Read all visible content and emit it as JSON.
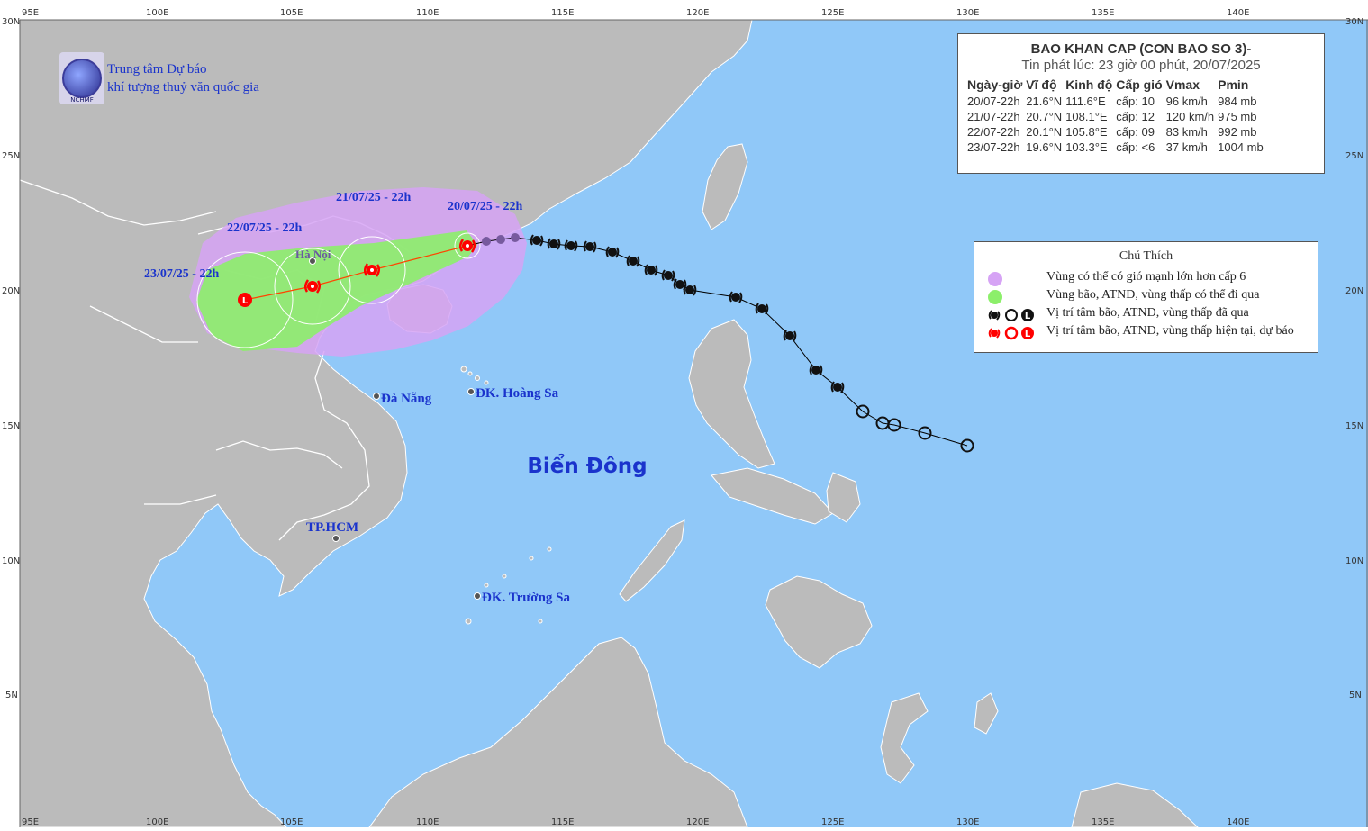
{
  "map": {
    "lon_ticks": [
      "95E",
      "100E",
      "105E",
      "110E",
      "115E",
      "120E",
      "125E",
      "130E",
      "135E",
      "140E"
    ],
    "lat_ticks": [
      "30N",
      "25N",
      "20N",
      "15N",
      "10N",
      "5N"
    ],
    "sea_label": "Biển Đông",
    "places": {
      "hanoi": "Hà Nội",
      "danang": "Đà Nẵng",
      "hoangsa": "ĐK. Hoàng Sa",
      "hcm": "TP.HCM",
      "truongsa": "ĐK. Trường Sa"
    },
    "forecast_dates": {
      "d1": "20/07/25 - 22h",
      "d2": "21/07/25 - 22h",
      "d3": "22/07/25 - 22h",
      "d4": "23/07/25 - 22h"
    },
    "colors": {
      "sea": "#90c8f8",
      "land": "#bbbbbb",
      "strong_wind_zone": "#d6a3f5",
      "storm_zone": "#8cef6a",
      "track_past": "#000000",
      "track_current": "#ff0000",
      "track_near_past": "#775a9e"
    },
    "past_track_icons": "storm-icon",
    "early_track_icons": "circle-icon"
  },
  "org": {
    "line1": "Trung tâm Dự báo",
    "line2": "khí tượng thuỷ văn quốc gia",
    "logo_text": "NCHMF"
  },
  "bulletin": {
    "title": "BAO KHAN CAP (CON BAO SO 3)-",
    "issued": "Tin phát lúc: 23 giờ 00 phút, 20/07/2025",
    "headers": [
      "Ngày-giờ",
      "Vĩ độ",
      "Kinh độ",
      "Cấp gió",
      "Vmax",
      "Pmin"
    ],
    "rows": [
      [
        "20/07-22h",
        "21.6°N",
        "111.6°E",
        "cấp: 10",
        "96 km/h",
        "984 mb"
      ],
      [
        "21/07-22h",
        "20.7°N",
        "108.1°E",
        "cấp: 12",
        "120 km/h",
        "975 mb"
      ],
      [
        "22/07-22h",
        "20.1°N",
        "105.8°E",
        "cấp: 09",
        "83 km/h",
        "992 mb"
      ],
      [
        "23/07-22h",
        "19.6°N",
        "103.3°E",
        "cấp: <6",
        "37 km/h",
        "1004 mb"
      ]
    ]
  },
  "legend": {
    "title": "Chú Thích",
    "items": [
      "Vùng có thể có gió mạnh lớn hơn cấp 6",
      "Vùng bão, ATNĐ, vùng thấp có thể đi qua",
      "Vị trí tâm bão, ATNĐ, vùng thấp đã qua",
      "Vị trí tâm bão, ATNĐ, vùng thấp hiện tại, dự báo"
    ]
  }
}
